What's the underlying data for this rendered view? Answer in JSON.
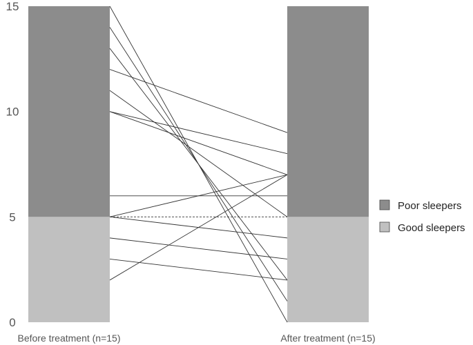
{
  "chart_data": {
    "type": "bar",
    "title": "",
    "xlabel": "",
    "ylabel": "",
    "ylim": [
      0,
      15
    ],
    "y_ticks": [
      "0",
      "5",
      "10",
      "15"
    ],
    "grid": false,
    "legend_position": "right",
    "categories": [
      "Before treatment (n=15)",
      "After treatment (n=15)"
    ],
    "series": [
      {
        "name": "Good sleepers",
        "color": "#c0c0c0",
        "values": [
          5,
          5
        ]
      },
      {
        "name": "Poor sleepers",
        "color": "#8c8c8c",
        "values": [
          10,
          10
        ]
      }
    ],
    "paired_lines": [
      {
        "before": 15,
        "after": 0,
        "style": "solid"
      },
      {
        "before": 14,
        "after": 1,
        "style": "solid"
      },
      {
        "before": 13,
        "after": 2,
        "style": "solid"
      },
      {
        "before": 12,
        "after": 9,
        "style": "solid"
      },
      {
        "before": 11,
        "after": 5,
        "style": "solid"
      },
      {
        "before": 10,
        "after": 8,
        "style": "solid"
      },
      {
        "before": 10,
        "after": 7,
        "style": "solid"
      },
      {
        "before": 6,
        "after": 6,
        "style": "solid"
      },
      {
        "before": 5,
        "after": 5,
        "style": "dashed"
      },
      {
        "before": 5,
        "after": 4,
        "style": "solid"
      },
      {
        "before": 5,
        "after": 7,
        "style": "solid"
      },
      {
        "before": 4,
        "after": 3,
        "style": "solid"
      },
      {
        "before": 3,
        "after": 2,
        "style": "solid"
      },
      {
        "before": 2,
        "after": 7,
        "style": "solid"
      }
    ],
    "line_color": "#333333"
  }
}
